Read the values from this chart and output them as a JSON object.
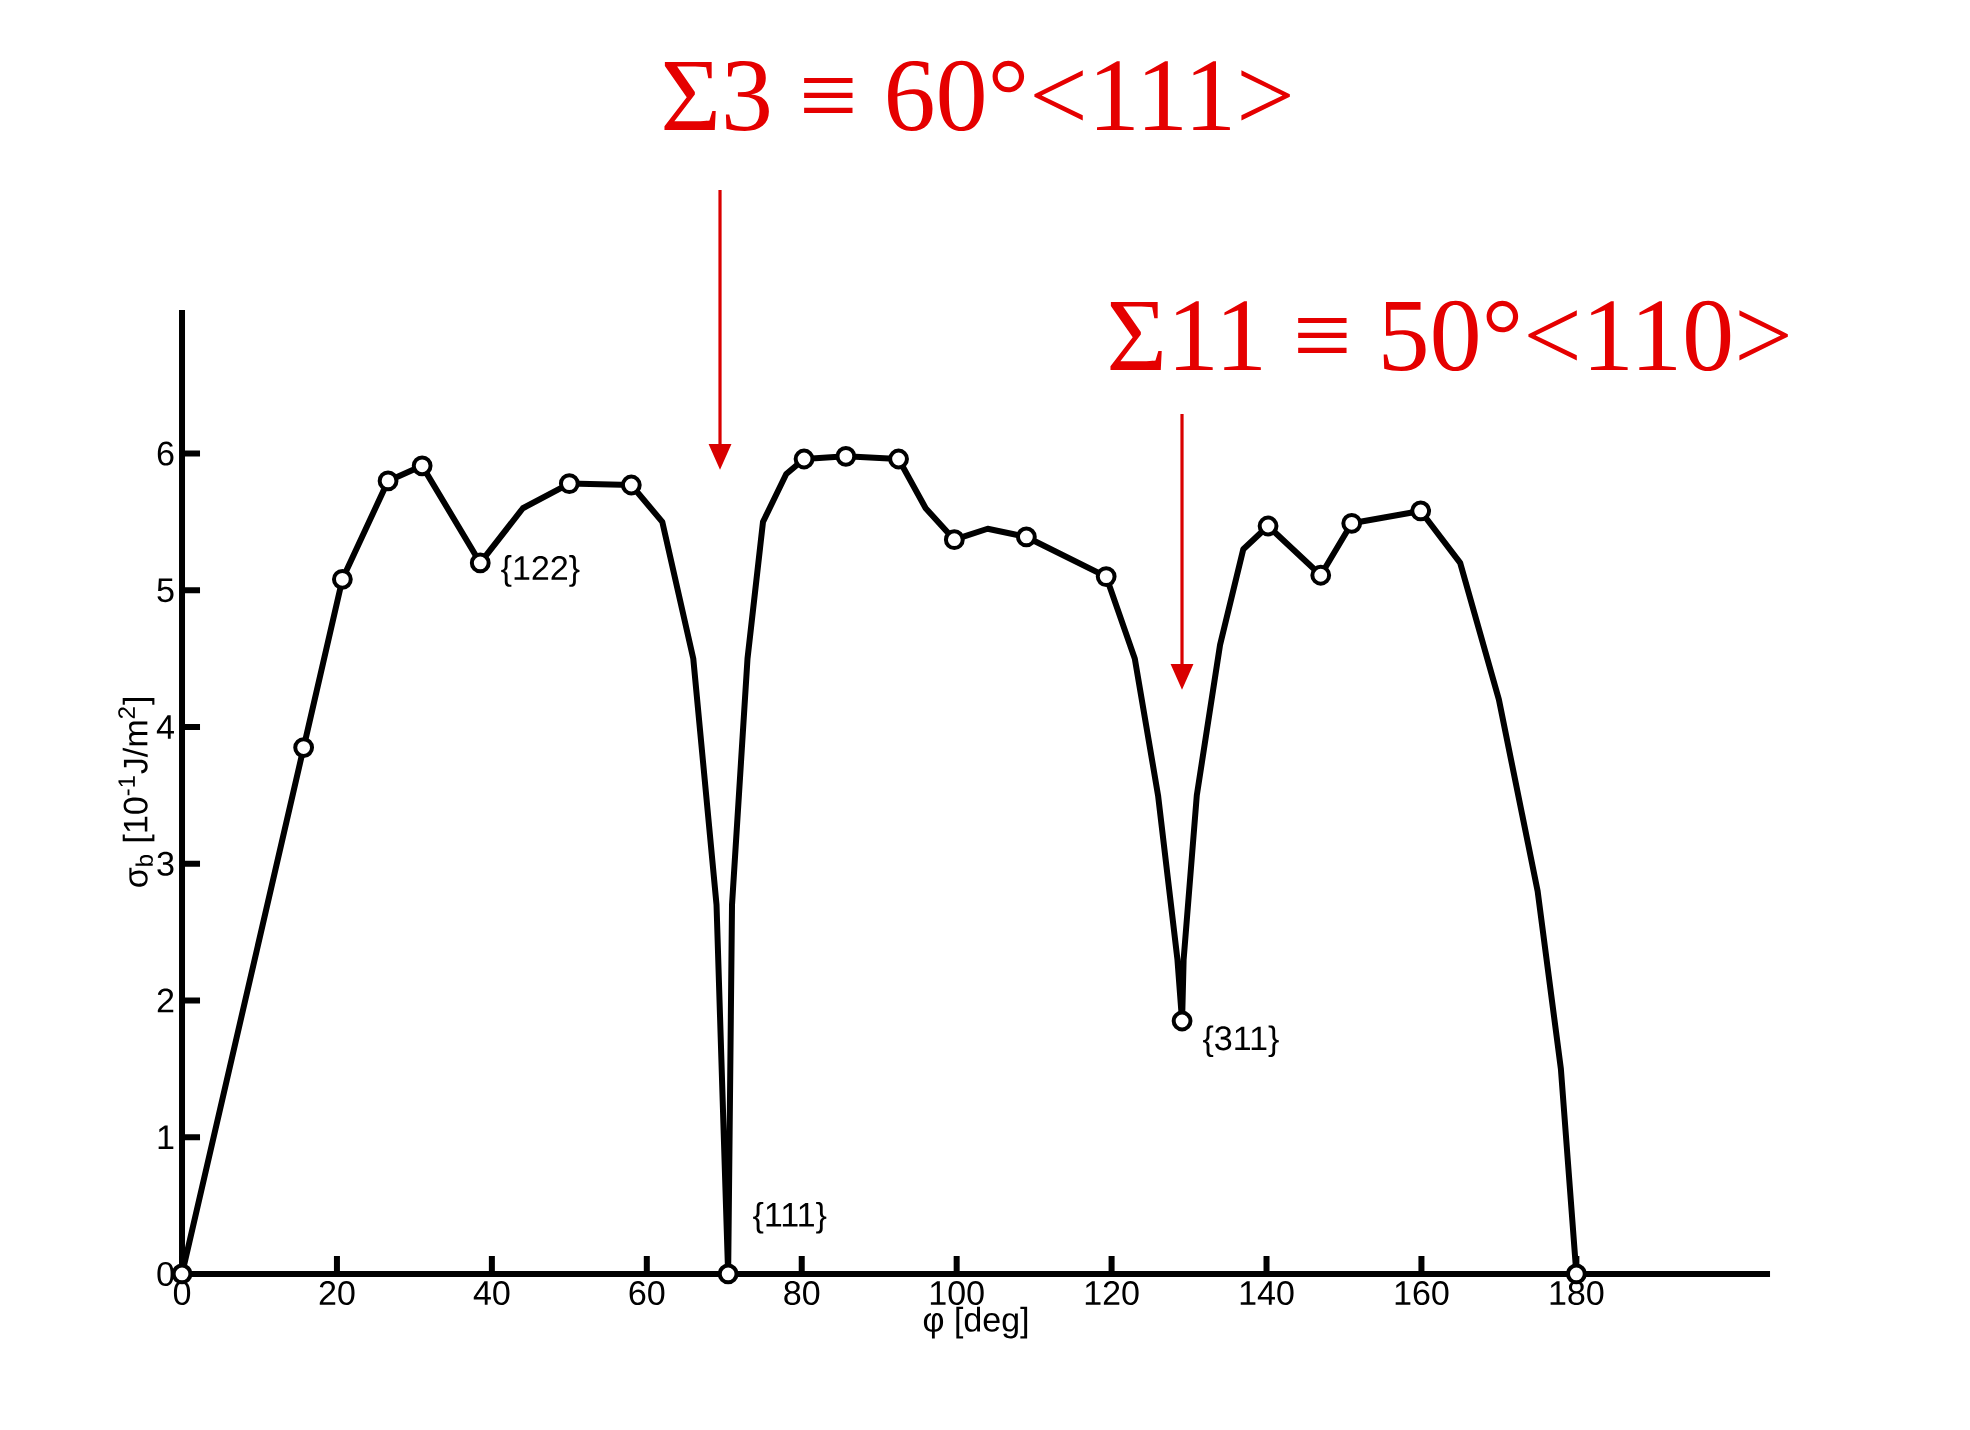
{
  "chart_data": {
    "type": "line",
    "xlabel": "φ [deg]",
    "ylabel": "σ$_{b}$ [10$^{-1}$J/m$^{2}$]",
    "xlim": [
      0,
      205
    ],
    "ylim": [
      0,
      7.05
    ],
    "xticks": [
      0,
      20,
      40,
      60,
      80,
      100,
      120,
      140,
      160,
      180
    ],
    "yticks": [
      0,
      1,
      2,
      3,
      4,
      5,
      6
    ],
    "grid": false,
    "series": [
      {
        "color": "#000000",
        "marker": "none",
        "x": [
          0,
          15.7,
          20.7,
          26.6,
          31,
          38.5,
          44,
          50,
          58,
          62,
          66,
          69,
          70.5,
          71,
          73,
          75,
          78,
          80.3,
          85.7,
          92.5,
          96,
          99.7,
          104,
          109,
          119.3,
          123,
          126,
          128.5,
          129.1,
          129.3,
          131,
          134,
          137,
          140.2,
          147,
          151,
          159.9,
          165,
          170,
          175,
          178,
          180
        ],
        "values": [
          0,
          3.85,
          5.08,
          5.8,
          5.91,
          5.2,
          5.6,
          5.78,
          5.77,
          5.5,
          4.5,
          2.7,
          0,
          2.7,
          4.5,
          5.5,
          5.85,
          5.96,
          5.98,
          5.96,
          5.6,
          5.37,
          5.45,
          5.39,
          5.1,
          4.5,
          3.5,
          2.3,
          1.85,
          2.3,
          3.5,
          4.6,
          5.3,
          5.47,
          5.11,
          5.49,
          5.58,
          5.2,
          4.2,
          2.8,
          1.5,
          0
        ]
      },
      {
        "type": "scatter",
        "color": "#000000",
        "marker": "circle",
        "x": [
          0,
          15.7,
          20.7,
          26.6,
          31,
          38.5,
          50,
          58,
          70.5,
          80.3,
          85.7,
          92.5,
          99.7,
          109,
          119.3,
          129.1,
          140.2,
          147,
          151,
          159.9,
          180
        ],
        "values": [
          0,
          3.85,
          5.08,
          5.8,
          5.91,
          5.2,
          5.78,
          5.77,
          0,
          5.96,
          5.98,
          5.96,
          5.37,
          5.39,
          5.1,
          1.85,
          5.47,
          5.11,
          5.49,
          5.58,
          0
        ]
      }
    ],
    "annotations": [
      "Σ3 ≡ 60°<111>",
      "Σ11 ≡ 50°<110>",
      {
        "text": "{122}",
        "x": 38.5,
        "y": 5.2
      },
      {
        "text": "{111}",
        "x": 70.5,
        "y": 0
      },
      {
        "text": "{311}",
        "x": 129.1,
        "y": 1.85
      }
    ]
  }
}
